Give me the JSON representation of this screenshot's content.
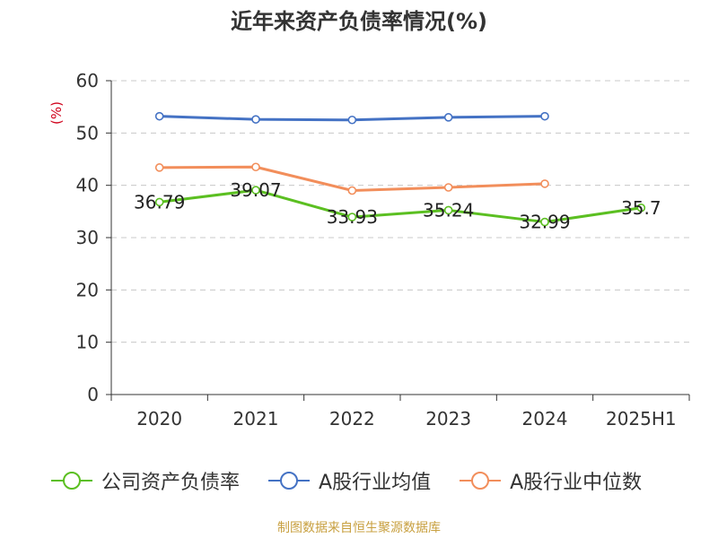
{
  "chart_data": {
    "type": "line",
    "title": "近年来资产负债率情况(%)",
    "ylabel": "(%)",
    "xlabel": "",
    "ylim": [
      0,
      60
    ],
    "yticks": [
      0,
      10,
      20,
      30,
      40,
      50,
      60
    ],
    "grid": true,
    "legend_position": "bottom",
    "categories": [
      "2020",
      "2021",
      "2022",
      "2023",
      "2024",
      "2025H1"
    ],
    "series": [
      {
        "name": "公司资产负债率",
        "color": "#5bbf21",
        "values": [
          36.79,
          39.07,
          33.93,
          35.24,
          32.99,
          35.7
        ],
        "labels": [
          "36.79",
          "39.07",
          "33.93",
          "35.24",
          "32.99",
          "35.7"
        ]
      },
      {
        "name": "A股行业均值",
        "color": "#4472c4",
        "values": [
          53.2,
          52.6,
          52.5,
          53.0,
          53.2,
          null
        ]
      },
      {
        "name": "A股行业中位数",
        "color": "#f28e5b",
        "values": [
          43.4,
          43.5,
          39.0,
          39.6,
          40.3,
          null
        ]
      }
    ]
  },
  "source": "制图数据来自恒生聚源数据库"
}
